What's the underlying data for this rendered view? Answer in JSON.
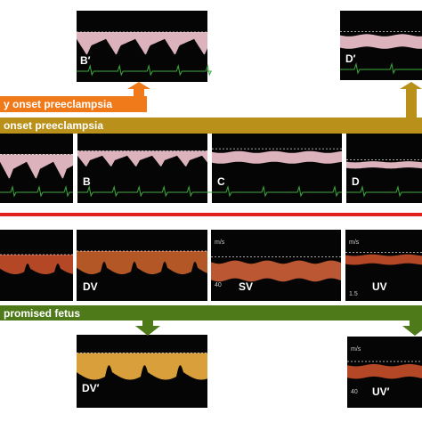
{
  "banners": {
    "early": "y onset preeclampsia",
    "late": "onset preeclampsia",
    "compromised": "promised fetus"
  },
  "panels": {
    "top_b": "B′",
    "top_d": "D′",
    "row1_b": "B",
    "row1_c": "C",
    "row1_d": "D",
    "row2_dv": "DV",
    "row2_sv": "SV",
    "row2_uv": "UV",
    "bottom_dv": "DV′",
    "bottom_uv": "UV′"
  },
  "axis_marks": {
    "unit_sv": "m/s",
    "tick_sv": "40",
    "unit_uv": "m/s",
    "tick_uv": "1.5",
    "unit_uv_bottom": "m/s",
    "tick_uv_bottom": "40"
  }
}
